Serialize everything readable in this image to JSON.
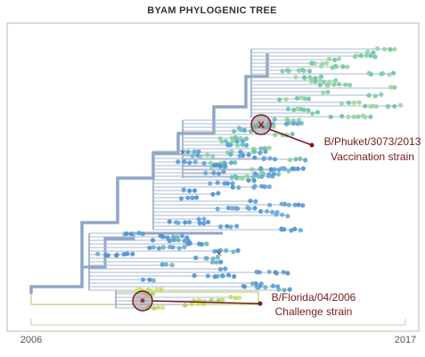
{
  "title": "BYAM PHYLOGENIC TREE",
  "annotations": [
    {
      "marker": "X",
      "label": "B/Phuket/3073/2013",
      "note": "Vaccination strain"
    },
    {
      "marker": "*",
      "label": "B/Florida/04/2006",
      "note": "Challenge strain"
    }
  ],
  "axis": {
    "start": "2006",
    "end": "2017"
  }
}
